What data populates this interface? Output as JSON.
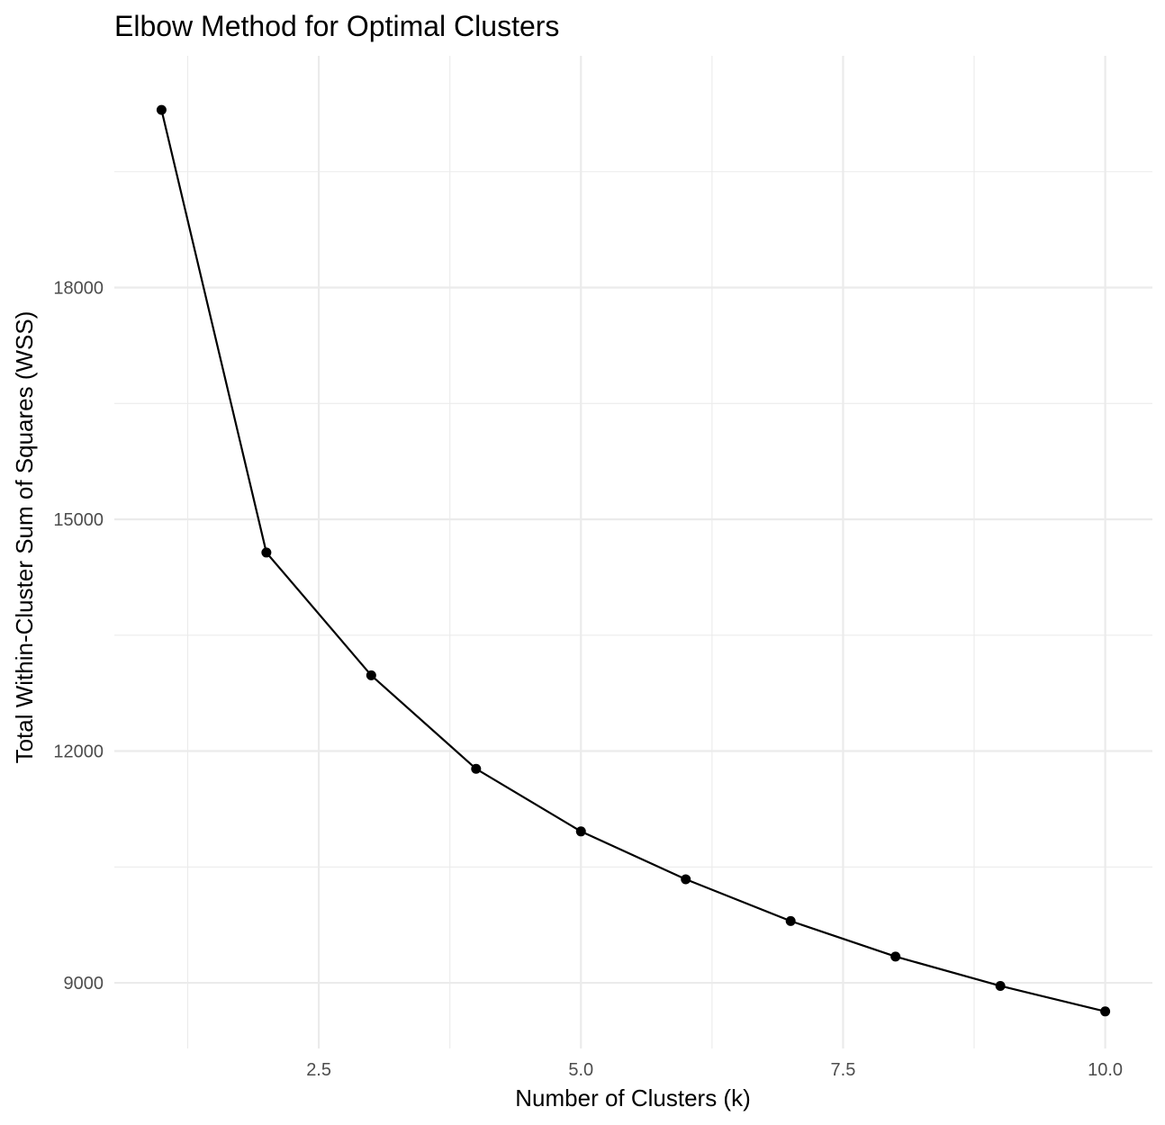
{
  "chart_data": {
    "type": "line",
    "title": "Elbow Method for Optimal Clusters",
    "xlabel": "Number of Clusters (k)",
    "ylabel": "Total Within-Cluster Sum of Squares (WSS)",
    "x": [
      1,
      2,
      3,
      4,
      5,
      6,
      7,
      8,
      9,
      10
    ],
    "series": [
      {
        "values": [
          20300,
          14570,
          12980,
          11770,
          10960,
          10340,
          9800,
          9340,
          8960,
          8630
        ]
      }
    ],
    "xlim": [
      0.55,
      10.45
    ],
    "ylim": [
      8150,
      21000
    ],
    "x_ticks": [
      2.5,
      5.0,
      7.5,
      10.0
    ],
    "x_tick_labels": [
      "2.5",
      "5.0",
      "7.5",
      "10.0"
    ],
    "y_ticks": [
      9000,
      12000,
      15000,
      18000
    ],
    "y_tick_labels": [
      "9000",
      "12000",
      "15000",
      "18000"
    ],
    "grid": true,
    "legend": "none",
    "colors": {
      "line": "#000000",
      "point": "#000000",
      "grid": "#ebebeb",
      "tick_text": "#4d4d4d",
      "background": "#ffffff"
    }
  }
}
